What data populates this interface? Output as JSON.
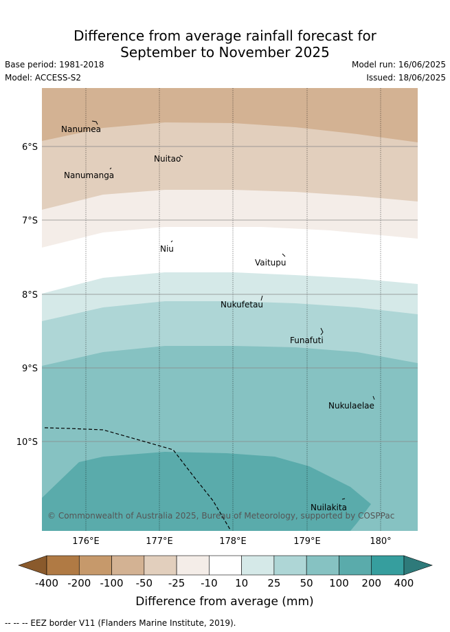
{
  "title_line1": "Difference from average rainfall forecast for",
  "title_line2": "September to November 2025",
  "base_period": "Base period: 1981-2018",
  "model": "Model: ACCESS-S2",
  "model_run": "Model run: 16/06/2025",
  "issued": "Issued: 18/06/2025",
  "lat_labels": [
    "6°S",
    "7°S",
    "8°S",
    "9°S",
    "10°S"
  ],
  "lon_labels": [
    "176°E",
    "177°E",
    "178°E",
    "179°E",
    "180°"
  ],
  "islands": [
    "Nanumea",
    "Nuitao",
    "Nanumanga",
    "Niu",
    "Vaitupu",
    "Nukufetau",
    "Funafuti",
    "Nukulaelae",
    "Nuilakita"
  ],
  "copyright": "© Commonwealth of Australia 2025, Bureau of Meteorology, supported by COSPPac",
  "colorbar": {
    "ticks": [
      "-400",
      "-200",
      "-100",
      "-50",
      "-25",
      "-10",
      "10",
      "25",
      "50",
      "100",
      "200",
      "400"
    ],
    "label": "Difference from average (mm)",
    "colors": [
      "#8a5a2c",
      "#b07a44",
      "#c6996b",
      "#d3b293",
      "#e2cfbd",
      "#f4ede8",
      "#ffffff",
      "#d5e9e8",
      "#aed6d6",
      "#86c2c2",
      "#5aabab",
      "#369e9e",
      "#2e7a7a"
    ]
  },
  "footnote": "-- -- -- EEZ border V11 (Flanders Marine Institute, 2019)."
}
